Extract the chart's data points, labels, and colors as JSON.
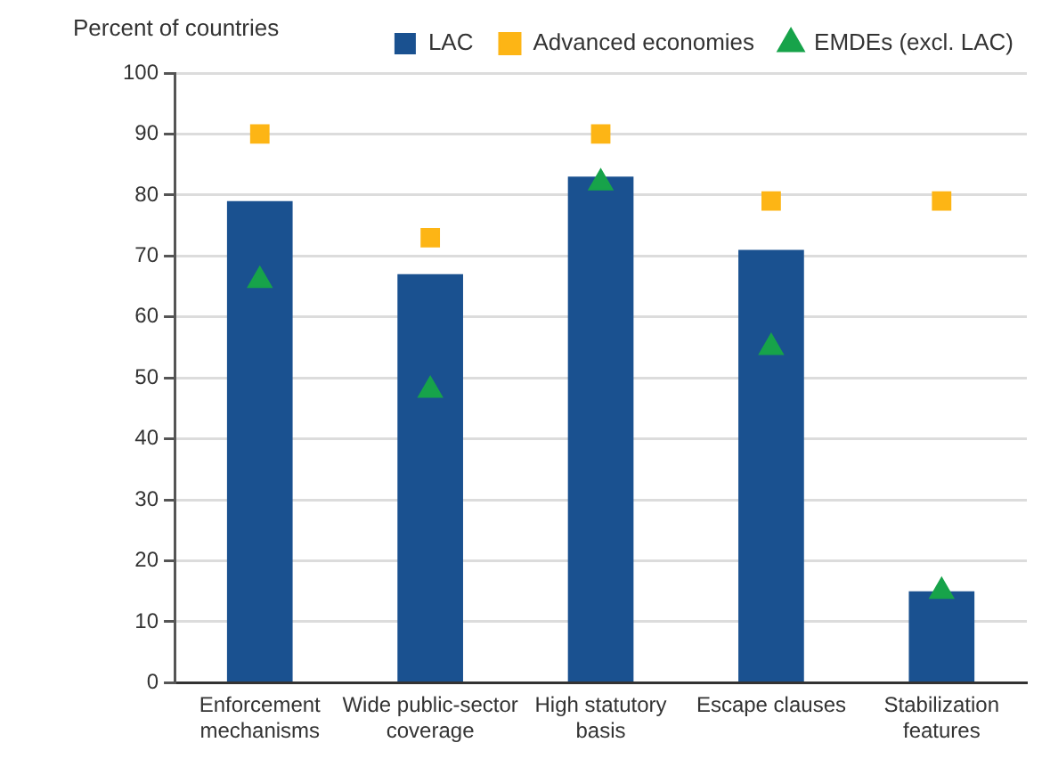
{
  "chart_data": {
    "type": "bar",
    "ylabel": "Percent of countries",
    "categories": [
      "Enforcement mechanisms",
      "Wide public-sector coverage",
      "High statutory basis",
      "Escape clauses",
      "Stabilization features"
    ],
    "series": [
      {
        "name": "LAC",
        "color": "#1a5190",
        "values": [
          79,
          67,
          83,
          71,
          15
        ]
      },
      {
        "name": "Advanced economies",
        "type": "scatter",
        "marker": "square",
        "color": "#fdb515",
        "x": [
          "Enforcement mechanisms",
          "Wide public-sector coverage",
          "High statutory basis",
          "Escape clauses",
          "Stabilization features"
        ],
        "values": [
          90,
          73,
          90,
          79,
          79
        ]
      },
      {
        "name": "EMDEs (excl. LAC)",
        "type": "scatter",
        "marker": "triangle",
        "color": "#17a34a",
        "x": [
          "Enforcement mechanisms",
          "Wide public-sector coverage",
          "High statutory basis",
          "Escape clauses",
          "Stabilization features"
        ],
        "values": [
          66,
          48,
          82,
          55,
          15
        ]
      }
    ],
    "ylim": [
      0,
      100
    ],
    "yticks": [
      0,
      10,
      20,
      30,
      40,
      50,
      60,
      70,
      80,
      90,
      100
    ],
    "grid": "y",
    "legend": "top right"
  }
}
